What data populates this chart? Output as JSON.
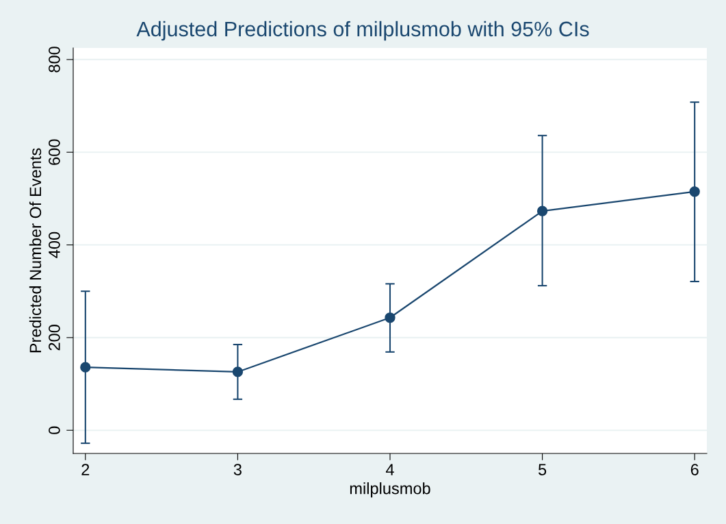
{
  "chart_data": {
    "type": "line",
    "title": "Adjusted Predictions of milplusmob with 95% CIs",
    "xlabel": "milplusmob",
    "ylabel": "Predicted Number Of Events",
    "x": [
      2,
      3,
      4,
      5,
      6
    ],
    "values": [
      136,
      126,
      243,
      473,
      515
    ],
    "color": "#1a476f",
    "errors": [
      [
        -28,
        300
      ],
      [
        67,
        185
      ],
      [
        169,
        316
      ],
      [
        312,
        636
      ],
      [
        321,
        708
      ]
    ],
    "xlim": [
      1.92,
      6.08
    ],
    "ylim": [
      -50,
      825
    ],
    "xticks": [
      2,
      3,
      4,
      5,
      6
    ],
    "yticks": [
      0,
      200,
      400,
      600,
      800
    ],
    "grid": "y",
    "marker": "circle",
    "line_style": "solid"
  }
}
